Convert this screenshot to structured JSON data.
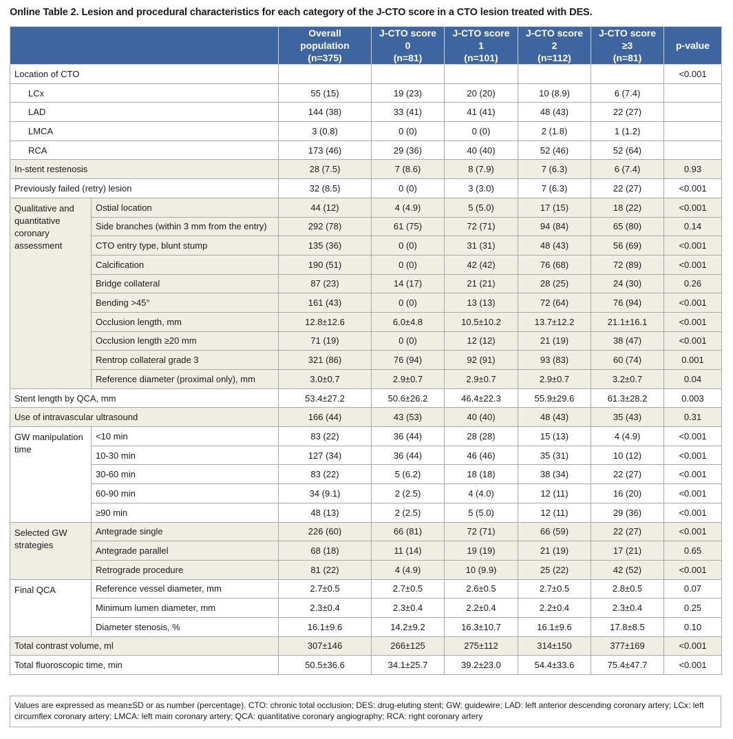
{
  "title": "Online Table 2. Lesion and procedural characteristics for each category of the J-CTO score in a CTO lesion treated with DES.",
  "table": {
    "headers": [
      [
        "Overall population",
        "(n=375)"
      ],
      [
        "J-CTO score 0",
        "(n=81)"
      ],
      [
        "J-CTO score 1",
        "(n=101)"
      ],
      [
        "J-CTO score 2",
        "(n=112)"
      ],
      [
        "J-CTO score ≥3",
        "(n=81)"
      ],
      [
        "p-value"
      ]
    ],
    "groups": [
      {
        "label": "Location of CTO",
        "values": [
          null,
          null,
          null,
          null,
          null,
          "<0.001"
        ],
        "rows": [
          {
            "label": "LCx",
            "values": [
              "55 (15)",
              "19 (23)",
              "20 (20)",
              "10 (8.9)",
              "6 (7.4)",
              null
            ]
          },
          {
            "label": "LAD",
            "values": [
              "144 (38)",
              "33 (41)",
              "41 (41)",
              "48 (43)",
              "22 (27)",
              null
            ]
          },
          {
            "label": "LMCA",
            "values": [
              "3 (0.8)",
              "0 (0)",
              "0 (0)",
              "2 (1.8)",
              "1 (1.2)",
              null
            ]
          },
          {
            "label": "RCA",
            "values": [
              "173 (46)",
              "29 (36)",
              "40 (40)",
              "52 (46)",
              "52 (64)",
              null
            ]
          }
        ]
      },
      {
        "label": "In-stent restenosis",
        "values": [
          "28 (7.5)",
          "7 (8.6)",
          "8 (7.9)",
          "7 (6.3)",
          "6 (7.4)",
          "0.93"
        ]
      },
      {
        "label": "Previously failed (retry) lesion",
        "values": [
          "32 (8.5)",
          "0 (0)",
          "3 (3.0)",
          "7 (6.3)",
          "22 (27)",
          "<0.001"
        ]
      },
      {
        "label": "Qualitative and quantitative coronary assessment",
        "rows": [
          {
            "label": "Ostial location",
            "values": [
              "44 (12)",
              "4 (4.9)",
              "5 (5.0)",
              "17 (15)",
              "18 (22)",
              "<0.001"
            ]
          },
          {
            "label": "Side branches (within 3 mm from the entry)",
            "values": [
              "292 (78)",
              "61 (75)",
              "72 (71)",
              "94 (84)",
              "65 (80)",
              "0.14"
            ]
          },
          {
            "label": "CTO entry type, blunt stump",
            "values": [
              "135 (36)",
              "0 (0)",
              "31 (31)",
              "48 (43)",
              "56 (69)",
              "<0.001"
            ]
          },
          {
            "label": "Calcification",
            "values": [
              "190 (51)",
              "0 (0)",
              "42 (42)",
              "76 (68)",
              "72 (89)",
              "<0.001"
            ]
          },
          {
            "label": "Bridge collateral",
            "values": [
              "87 (23)",
              "14 (17)",
              "21 (21)",
              "28 (25)",
              "24 (30)",
              "0.26"
            ]
          },
          {
            "label": "Bending >45°",
            "values": [
              "161 (43)",
              "0 (0)",
              "13 (13)",
              "72 (64)",
              "76 (94)",
              "<0.001"
            ]
          },
          {
            "label": "Occlusion length, mm",
            "values": [
              "12.8±12.6",
              "6.0±4.8",
              "10.5±10.2",
              "13.7±12.2",
              "21.1±16.1",
              "<0.001"
            ]
          },
          {
            "label": "Occlusion length ≥20 mm",
            "values": [
              "71 (19)",
              "0 (0)",
              "12 (12)",
              "21 (19)",
              "38 (47)",
              "<0.001"
            ]
          },
          {
            "label": "Rentrop collateral grade 3",
            "values": [
              "321 (86)",
              "76 (94)",
              "92 (91)",
              "93 (83)",
              "60 (74)",
              "0.001"
            ]
          },
          {
            "label": "Reference diameter (proximal only), mm",
            "values": [
              "3.0±0.7",
              "2.9±0.7",
              "2.9±0.7",
              "2.9±0.7",
              "3.2±0.7",
              "0.04"
            ]
          }
        ]
      },
      {
        "label": "Stent length by QCA, mm",
        "values": [
          "53.4±27.2",
          "50.6±26.2",
          "46.4±22.3",
          "55.9±29.6",
          "61.3±28.2",
          "0.003"
        ]
      },
      {
        "label": "Use of intravascular ultrasound",
        "values": [
          "166 (44)",
          "43 (53)",
          "40 (40)",
          "48 (43)",
          "35 (43)",
          "0.31"
        ]
      },
      {
        "label": "GW manipulation time",
        "rows": [
          {
            "label": "<10 min",
            "values": [
              "83 (22)",
              "36 (44)",
              "28 (28)",
              "15 (13)",
              "4 (4.9)",
              "<0.001"
            ]
          },
          {
            "label": "10-30 min",
            "values": [
              "127 (34)",
              "36 (44)",
              "46 (46)",
              "35 (31)",
              "10 (12)",
              "<0.001"
            ]
          },
          {
            "label": "30-60 min",
            "values": [
              "83 (22)",
              "5 (6.2)",
              "18 (18)",
              "38 (34)",
              "22 (27)",
              "<0.001"
            ]
          },
          {
            "label": "60-90 min",
            "values": [
              "34 (9.1)",
              "2 (2.5)",
              "4 (4.0)",
              "12 (11)",
              "16 (20)",
              "<0.001"
            ]
          },
          {
            "label": "≥90 min",
            "values": [
              "48 (13)",
              "2 (2.5)",
              "5 (5.0)",
              "12 (11)",
              "29 (36)",
              "<0.001"
            ]
          }
        ]
      },
      {
        "label": "Selected GW strategies",
        "rows": [
          {
            "label": "Antegrade single",
            "values": [
              "226 (60)",
              "66 (81)",
              "72 (71)",
              "66 (59)",
              "22 (27)",
              "<0.001"
            ]
          },
          {
            "label": "Antegrade parallel",
            "values": [
              "68 (18)",
              "11 (14)",
              "19 (19)",
              "21 (19)",
              "17 (21)",
              "0.65"
            ]
          },
          {
            "label": "Retrograde procedure",
            "values": [
              "81 (22)",
              "4 (4.9)",
              "10 (9.9)",
              "25 (22)",
              "42 (52)",
              "<0.001"
            ]
          }
        ]
      },
      {
        "label": "Final QCA",
        "rows": [
          {
            "label": "Reference vessel diameter, mm",
            "values": [
              "2.7±0.5",
              "2.7±0.5",
              "2.6±0.5",
              "2.7±0.5",
              "2.8±0.5",
              "0.07"
            ]
          },
          {
            "label": "Minimum lumen diameter, mm",
            "values": [
              "2.3±0.4",
              "2.3±0.4",
              "2.2±0.4",
              "2.2±0.4",
              "2.3±0.4",
              "0.25"
            ]
          },
          {
            "label": "Diameter stenosis, %",
            "values": [
              "16.1±9.6",
              "14.2±9.2",
              "16.3±10.7",
              "16.1±9.6",
              "17.8±8.5",
              "0.10"
            ]
          }
        ]
      },
      {
        "label": "Total contrast volume, ml",
        "values": [
          "307±146",
          "266±125",
          "275±112",
          "314±150",
          "377±169",
          "<0.001"
        ]
      },
      {
        "label": "Total fluoroscopic time, min",
        "values": [
          "50.5±36.6",
          "34.1±25.7",
          "39.2±23.0",
          "54.4±33.6",
          "75.4±47.7",
          "<0.001"
        ]
      }
    ]
  },
  "footnote": "Values are expressed as mean±SD or as number (percentage). CTO: chronic total occlusion; DES: drug-eluting stent; GW: guidewire; LAD: left anterior descending coronary artery; LCx: left circumflex coronary artery; LMCA: left main coronary artery; QCA: quantitative coronary angiography; RCA: right coronary artery"
}
